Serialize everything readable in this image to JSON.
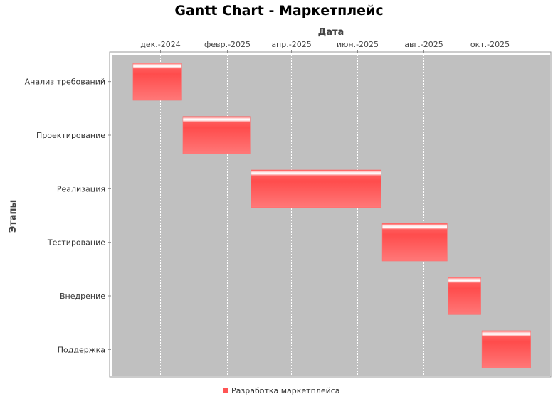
{
  "chart_data": {
    "type": "gantt",
    "title": "Gantt Chart - Маркетплейс",
    "xlabel": "Дата",
    "ylabel": "Этапы",
    "x_axis_position": "top",
    "xlim": [
      "2024-10-18",
      "2025-11-26"
    ],
    "x_ticks": [
      {
        "date": "2024-12-01",
        "label": "дек.-2024"
      },
      {
        "date": "2025-02-01",
        "label": "февр.-2025"
      },
      {
        "date": "2025-04-01",
        "label": "апр.-2025"
      },
      {
        "date": "2025-06-01",
        "label": "июн.-2025"
      },
      {
        "date": "2025-08-01",
        "label": "авг.-2025"
      },
      {
        "date": "2025-10-01",
        "label": "окт.-2025"
      }
    ],
    "categories": [
      "Анализ требований",
      "Проектирование",
      "Реализация",
      "Тестирование",
      "Внедрение",
      "Поддержка"
    ],
    "series": [
      {
        "name": "Разработка маркетплейса",
        "color": "#ff5555",
        "tasks": [
          {
            "category": "Анализ требований",
            "start": "2024-11-06",
            "end": "2024-12-21"
          },
          {
            "category": "Проектирование",
            "start": "2024-12-22",
            "end": "2025-02-22"
          },
          {
            "category": "Реализация",
            "start": "2025-02-23",
            "end": "2025-06-23"
          },
          {
            "category": "Тестирование",
            "start": "2025-06-24",
            "end": "2025-08-23"
          },
          {
            "category": "Внедрение",
            "start": "2025-08-24",
            "end": "2025-09-23"
          },
          {
            "category": "Поддержка",
            "start": "2025-09-24",
            "end": "2025-11-08"
          }
        ]
      }
    ],
    "grid": true,
    "plot_background": "#c0c0c0",
    "gridline_color": "#ffffff",
    "legend_position": "bottom"
  }
}
